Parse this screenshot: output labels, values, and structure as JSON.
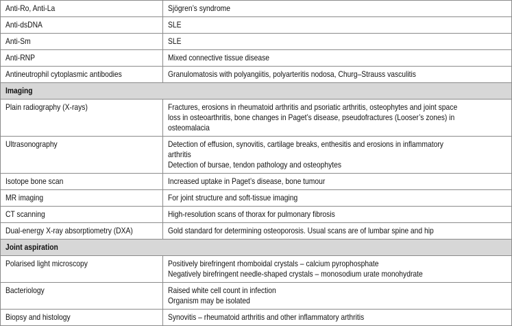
{
  "table": {
    "rows": [
      {
        "label": "Anti-Ro, Anti-La",
        "details": [
          "Sjögren’s syndrome"
        ]
      },
      {
        "label": "Anti-dsDNA",
        "details": [
          "SLE"
        ]
      },
      {
        "label": "Anti-Sm",
        "details": [
          "SLE"
        ]
      },
      {
        "label": "Anti-RNP",
        "details": [
          "Mixed connective tissue disease"
        ]
      },
      {
        "label": "Antineutrophil cytoplasmic antibodies",
        "details": [
          "Granulomatosis with polyangiitis, polyarteritis nodosa, Churg–Strauss vasculitis"
        ]
      },
      {
        "section": "Imaging"
      },
      {
        "label": "Plain radiography (X-rays)",
        "details": [
          "Fractures, erosions in rheumatoid arthritis and psoriatic arthritis, osteophytes and joint space",
          "loss in osteoarthritis, bone changes in Paget’s disease, pseudofractures (Looser’s zones) in",
          "osteomalacia"
        ]
      },
      {
        "label": "Ultrasonography",
        "details": [
          "Detection of effusion, synovitis, cartilage breaks, enthesitis and erosions in inflammatory",
          "arthritis",
          "Detection of bursae, tendon pathology and osteophytes"
        ]
      },
      {
        "label": "Isotope bone scan",
        "details": [
          "Increased uptake in Paget’s disease, bone tumour"
        ]
      },
      {
        "label": "MR imaging",
        "details": [
          "For joint structure and soft-tissue imaging"
        ]
      },
      {
        "label": "CT scanning",
        "details": [
          "High-resolution scans of thorax for pulmonary fibrosis"
        ]
      },
      {
        "label": "Dual-energy X-ray absorptiometry (DXA)",
        "details": [
          "Gold standard for determining osteoporosis. Usual scans are of lumbar spine and hip"
        ]
      },
      {
        "section": "Joint aspiration"
      },
      {
        "label": "Polarised light microscopy",
        "details": [
          "Positively birefringent rhomboidal crystals – calcium pyrophosphate",
          "Negatively birefringent needle-shaped crystals – monosodium urate monohydrate"
        ]
      },
      {
        "label": "Bacteriology",
        "details": [
          "Raised white cell count in infection",
          "Organism may be isolated"
        ]
      },
      {
        "label": "Biopsy and histology",
        "details": [
          "Synovitis – rheumatoid arthritis and other inflammatory arthritis"
        ]
      }
    ]
  }
}
